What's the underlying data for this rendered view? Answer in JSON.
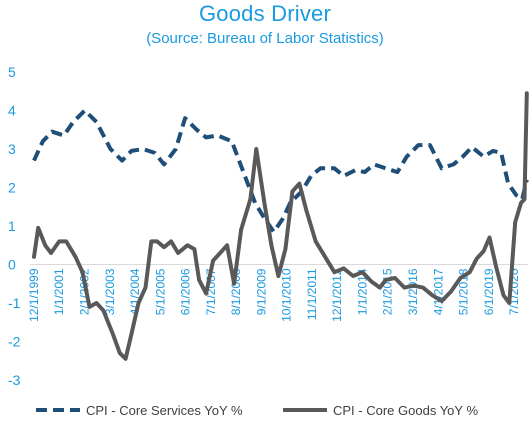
{
  "chart_data": {
    "type": "line",
    "title": "Goods Driver",
    "subtitle": "(Source: Bureau of Labor Statistics)",
    "xlabel": "",
    "ylabel": "",
    "ylim": [
      -3,
      5
    ],
    "yticks": [
      -3,
      -2,
      -1,
      0,
      1,
      2,
      3,
      4,
      5
    ],
    "grid": false,
    "legend_position": "bottom",
    "x_tick_labels": [
      "12/1/1999",
      "1/1/2001",
      "2/1/2002",
      "3/1/2003",
      "4/1/2004",
      "5/1/2005",
      "6/1/2006",
      "7/1/2007",
      "8/1/2008",
      "9/1/2009",
      "10/1/2010",
      "11/1/2011",
      "12/1/2012",
      "1/1/2014",
      "2/1/2015",
      "3/1/2016",
      "4/1/2017",
      "5/1/2018",
      "6/1/2019",
      "7/1/2020"
    ],
    "series": [
      {
        "name": "CPI -  Core Services YoY %",
        "style": "dashed",
        "color": "#1f4e79",
        "points": [
          [
            1999.92,
            2.7
          ],
          [
            2000.3,
            3.2
          ],
          [
            2000.7,
            3.45
          ],
          [
            2001.2,
            3.35
          ],
          [
            2001.6,
            3.7
          ],
          [
            2002.1,
            4.0
          ],
          [
            2002.6,
            3.7
          ],
          [
            2003.2,
            3.0
          ],
          [
            2003.7,
            2.7
          ],
          [
            2004.1,
            2.95
          ],
          [
            2004.6,
            3.0
          ],
          [
            2005.1,
            2.9
          ],
          [
            2005.5,
            2.6
          ],
          [
            2006.0,
            3.0
          ],
          [
            2006.4,
            3.8
          ],
          [
            2006.9,
            3.5
          ],
          [
            2007.3,
            3.3
          ],
          [
            2007.8,
            3.35
          ],
          [
            2008.4,
            3.2
          ],
          [
            2008.9,
            2.4
          ],
          [
            2009.4,
            1.6
          ],
          [
            2009.8,
            1.2
          ],
          [
            2010.2,
            0.85
          ],
          [
            2010.6,
            1.2
          ],
          [
            2010.9,
            1.6
          ],
          [
            2011.4,
            1.9
          ],
          [
            2011.8,
            2.3
          ],
          [
            2012.2,
            2.5
          ],
          [
            2012.8,
            2.5
          ],
          [
            2013.2,
            2.3
          ],
          [
            2013.7,
            2.45
          ],
          [
            2014.1,
            2.4
          ],
          [
            2014.5,
            2.6
          ],
          [
            2015.0,
            2.5
          ],
          [
            2015.5,
            2.4
          ],
          [
            2015.9,
            2.8
          ],
          [
            2016.4,
            3.1
          ],
          [
            2016.9,
            3.1
          ],
          [
            2017.4,
            2.5
          ],
          [
            2017.9,
            2.6
          ],
          [
            2018.3,
            2.8
          ],
          [
            2018.7,
            3.05
          ],
          [
            2019.2,
            2.8
          ],
          [
            2019.6,
            2.95
          ],
          [
            2019.95,
            2.9
          ],
          [
            2020.25,
            2.1
          ],
          [
            2020.6,
            1.8
          ],
          [
            2020.85,
            1.7
          ],
          [
            2021.05,
            2.2
          ]
        ]
      },
      {
        "name": "CPI -  Core Goods YoY %",
        "style": "solid",
        "color": "#595959",
        "points": [
          [
            1999.92,
            0.2
          ],
          [
            2000.1,
            0.95
          ],
          [
            2000.4,
            0.5
          ],
          [
            2000.65,
            0.3
          ],
          [
            2001.0,
            0.6
          ],
          [
            2001.3,
            0.6
          ],
          [
            2001.7,
            0.2
          ],
          [
            2002.0,
            -0.2
          ],
          [
            2002.3,
            -1.1
          ],
          [
            2002.6,
            -1.0
          ],
          [
            2002.9,
            -1.2
          ],
          [
            2003.1,
            -1.5
          ],
          [
            2003.3,
            -1.8
          ],
          [
            2003.6,
            -2.3
          ],
          [
            2003.85,
            -2.45
          ],
          [
            2004.1,
            -1.8
          ],
          [
            2004.4,
            -1.0
          ],
          [
            2004.7,
            -0.6
          ],
          [
            2004.95,
            0.6
          ],
          [
            2005.2,
            0.6
          ],
          [
            2005.5,
            0.45
          ],
          [
            2005.8,
            0.6
          ],
          [
            2006.1,
            0.3
          ],
          [
            2006.5,
            0.5
          ],
          [
            2006.8,
            0.4
          ],
          [
            2007.0,
            -0.4
          ],
          [
            2007.3,
            -0.75
          ],
          [
            2007.6,
            0.1
          ],
          [
            2007.9,
            0.3
          ],
          [
            2008.2,
            0.5
          ],
          [
            2008.5,
            -0.5
          ],
          [
            2008.8,
            0.9
          ],
          [
            2009.2,
            1.7
          ],
          [
            2009.45,
            3.0
          ],
          [
            2009.8,
            1.6
          ],
          [
            2010.1,
            0.5
          ],
          [
            2010.4,
            -0.3
          ],
          [
            2010.7,
            0.4
          ],
          [
            2011.0,
            1.9
          ],
          [
            2011.3,
            2.1
          ],
          [
            2011.6,
            1.4
          ],
          [
            2012.0,
            0.6
          ],
          [
            2012.4,
            0.2
          ],
          [
            2012.8,
            -0.2
          ],
          [
            2013.2,
            -0.1
          ],
          [
            2013.6,
            -0.3
          ],
          [
            2014.0,
            -0.2
          ],
          [
            2014.4,
            -0.45
          ],
          [
            2014.75,
            -0.6
          ],
          [
            2015.0,
            -0.4
          ],
          [
            2015.4,
            -0.35
          ],
          [
            2015.8,
            -0.6
          ],
          [
            2016.2,
            -0.55
          ],
          [
            2016.6,
            -0.6
          ],
          [
            2017.0,
            -0.8
          ],
          [
            2017.4,
            -0.95
          ],
          [
            2017.8,
            -0.7
          ],
          [
            2018.2,
            -0.35
          ],
          [
            2018.6,
            -0.2
          ],
          [
            2018.9,
            0.15
          ],
          [
            2019.2,
            0.35
          ],
          [
            2019.45,
            0.7
          ],
          [
            2019.75,
            -0.1
          ],
          [
            2020.05,
            -0.8
          ],
          [
            2020.3,
            -1.0
          ],
          [
            2020.55,
            1.1
          ],
          [
            2020.8,
            1.6
          ],
          [
            2020.95,
            1.7
          ],
          [
            2021.05,
            4.45
          ]
        ]
      }
    ]
  }
}
